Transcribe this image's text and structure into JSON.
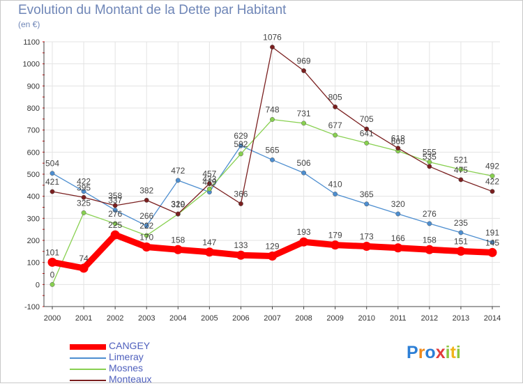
{
  "chart_data": {
    "type": "line",
    "title": "Evolution du Montant de la Dette par Habitant",
    "subtitle": "(en €)",
    "x": [
      "2000",
      "2001",
      "2002",
      "2003",
      "2004",
      "2005",
      "2006",
      "2007",
      "2008",
      "2009",
      "2010",
      "2011",
      "2012",
      "2013",
      "2014"
    ],
    "ylim": [
      -100,
      1100
    ],
    "yticks": [
      -100,
      0,
      100,
      200,
      300,
      400,
      500,
      600,
      700,
      800,
      900,
      1000,
      1100
    ],
    "grid": true,
    "legend_position": "bottom-left",
    "series": [
      {
        "name": "CANGEY",
        "color": "#ff0000",
        "values": [
          101,
          74,
          225,
          170,
          158,
          147,
          133,
          129,
          193,
          179,
          173,
          166,
          158,
          151,
          145
        ]
      },
      {
        "name": "Limeray",
        "color": "#4d8ed0",
        "values": [
          504,
          422,
          337,
          266,
          472,
          419,
          629,
          565,
          506,
          410,
          365,
          320,
          276,
          235,
          191
        ]
      },
      {
        "name": "Mosnes",
        "color": "#88d050",
        "values": [
          0,
          325,
          276,
          222,
          319,
          433,
          592,
          748,
          731,
          677,
          641,
          605,
          555,
          521,
          492
        ]
      },
      {
        "name": "Monteaux",
        "color": "#7a1f1f",
        "values": [
          421,
          395,
          358,
          382,
          320,
          457,
          366,
          1076,
          969,
          805,
          705,
          618,
          535,
          475,
          422
        ]
      }
    ]
  },
  "logo": {
    "text": "Proxiti"
  }
}
